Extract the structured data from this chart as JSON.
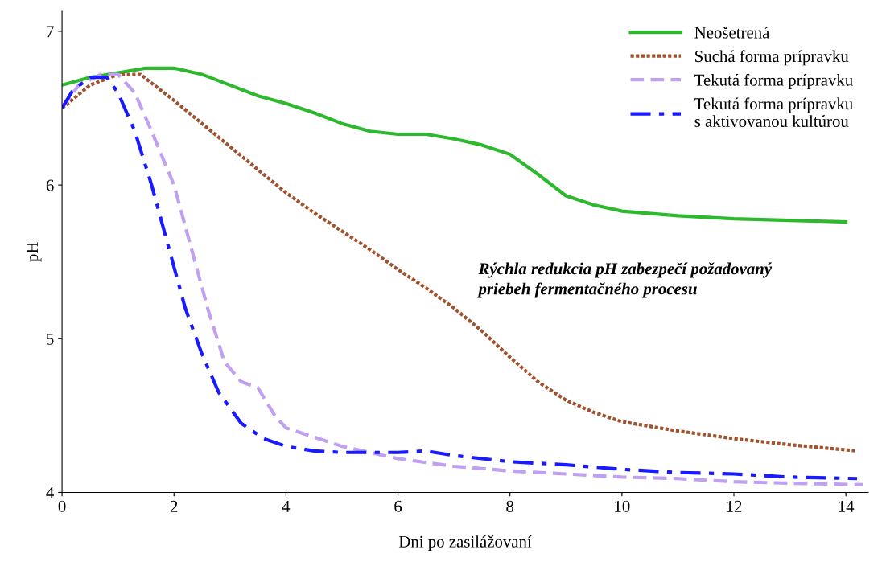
{
  "chart_data": {
    "type": "line",
    "xlabel": "Dni po zasilážovaní",
    "ylabel": "pH",
    "xlim": [
      0,
      14.4
    ],
    "ylim": [
      4,
      7.13
    ],
    "xticks": [
      0,
      2,
      4,
      6,
      8,
      10,
      12,
      14
    ],
    "yticks": [
      4,
      5,
      6,
      7
    ],
    "grid": false,
    "legend": "top right",
    "marker": "none",
    "annotations": [
      "Rýchla redukcia pH zabezpečí požadovaný\npriebeh fermentačného procesu"
    ],
    "series": [
      {
        "name": "Neošetrená",
        "color": "#2db82d",
        "line_style": "solid",
        "x": [
          0,
          0.5,
          1,
          1.5,
          2,
          2.5,
          3,
          3.5,
          4,
          4.5,
          5,
          5.5,
          6,
          6.5,
          7,
          7.5,
          8,
          8.5,
          9,
          9.5,
          10,
          11,
          12,
          13,
          14
        ],
        "values": [
          6.65,
          6.7,
          6.73,
          6.76,
          6.76,
          6.72,
          6.65,
          6.58,
          6.53,
          6.47,
          6.4,
          6.35,
          6.33,
          6.33,
          6.3,
          6.26,
          6.2,
          6.07,
          5.93,
          5.87,
          5.83,
          5.8,
          5.78,
          5.77,
          5.76
        ]
      },
      {
        "name": "Suchá forma prípravku",
        "color": "#a0522d",
        "line_style": "dotted",
        "x": [
          0,
          0.5,
          1,
          1.4,
          2,
          2.5,
          3,
          3.5,
          4,
          4.5,
          5,
          5.5,
          6,
          6.5,
          7,
          7.5,
          8,
          8.5,
          9,
          9.5,
          10,
          11,
          12,
          13,
          14.2
        ],
        "values": [
          6.5,
          6.65,
          6.72,
          6.72,
          6.55,
          6.4,
          6.25,
          6.1,
          5.95,
          5.82,
          5.7,
          5.58,
          5.45,
          5.33,
          5.2,
          5.05,
          4.88,
          4.72,
          4.6,
          4.52,
          4.46,
          4.4,
          4.35,
          4.31,
          4.27
        ]
      },
      {
        "name": "Tekutá forma prípravku",
        "color": "#c0a0f0",
        "line_style": "dashed",
        "x": [
          0,
          0.3,
          0.7,
          1,
          1.3,
          1.6,
          2,
          2.3,
          2.6,
          2.9,
          3.2,
          3.5,
          3.8,
          4,
          4.5,
          5,
          6,
          7,
          8,
          9,
          10,
          11,
          12,
          13,
          14.3
        ],
        "values": [
          6.5,
          6.65,
          6.72,
          6.72,
          6.6,
          6.35,
          6.0,
          5.6,
          5.2,
          4.85,
          4.72,
          4.68,
          4.5,
          4.42,
          4.36,
          4.3,
          4.22,
          4.17,
          4.14,
          4.12,
          4.1,
          4.09,
          4.07,
          4.06,
          4.05
        ]
      },
      {
        "name": "Tekutá forma prípravku\ns aktivovanou kultúrou",
        "color": "#1a1aff",
        "line_style": "dashdot",
        "x": [
          0,
          0.2,
          0.5,
          0.8,
          1,
          1.3,
          1.6,
          1.9,
          2.2,
          2.5,
          2.8,
          3.2,
          3.6,
          4,
          4.5,
          5,
          6,
          6.5,
          7,
          8,
          9,
          10,
          11,
          12,
          13,
          14.2
        ],
        "values": [
          6.5,
          6.62,
          6.7,
          6.7,
          6.6,
          6.35,
          6.0,
          5.6,
          5.2,
          4.9,
          4.65,
          4.45,
          4.35,
          4.3,
          4.27,
          4.26,
          4.26,
          4.27,
          4.24,
          4.2,
          4.18,
          4.15,
          4.13,
          4.12,
          4.1,
          4.09
        ]
      }
    ]
  }
}
